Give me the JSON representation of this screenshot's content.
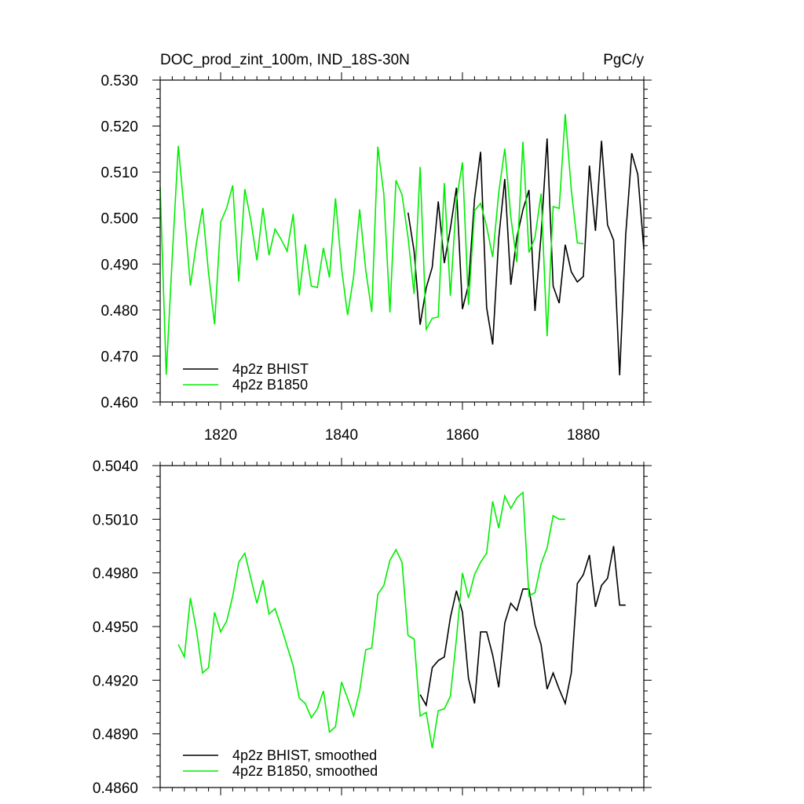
{
  "colors": {
    "black": "#000000",
    "green": "#00ee00"
  },
  "chart_data": [
    {
      "type": "line",
      "title": "DOC_prod_zint_100m, IND_18S-30N",
      "units": "PgC/y",
      "xlim": [
        1810,
        1890
      ],
      "ylim": [
        0.46,
        0.53
      ],
      "xticks": [
        1820,
        1840,
        1860,
        1880
      ],
      "xtick_labels": [
        "1820",
        "1840",
        "1860",
        "1880"
      ],
      "yticks": [
        0.46,
        0.47,
        0.48,
        0.49,
        0.5,
        0.51,
        0.52,
        0.53
      ],
      "ytick_labels": [
        "0.460",
        "0.470",
        "0.480",
        "0.490",
        "0.500",
        "0.510",
        "0.520",
        "0.530"
      ],
      "legend_position": "bottom-left",
      "series": [
        {
          "name": "4p2z BHIST",
          "color": "#000000",
          "x": [
            1851,
            1852,
            1853,
            1854,
            1855,
            1856,
            1857,
            1858,
            1859,
            1860,
            1861,
            1862,
            1863,
            1864,
            1865,
            1866,
            1867,
            1868,
            1869,
            1870,
            1871,
            1872,
            1873,
            1874,
            1875,
            1876,
            1877,
            1878,
            1879,
            1880,
            1881,
            1882,
            1883,
            1884,
            1885,
            1886,
            1887,
            1888,
            1889,
            1890
          ],
          "y": [
            0.5012,
            0.4928,
            0.4768,
            0.4848,
            0.4893,
            0.5036,
            0.4902,
            0.4977,
            0.5066,
            0.4802,
            0.4855,
            0.5042,
            0.5144,
            0.4805,
            0.4725,
            0.4956,
            0.5085,
            0.4855,
            0.4958,
            0.5018,
            0.5061,
            0.4798,
            0.4963,
            0.5173,
            0.4852,
            0.4815,
            0.4942,
            0.4883,
            0.4861,
            0.4873,
            0.5114,
            0.4972,
            0.5168,
            0.4985,
            0.4952,
            0.4658,
            0.4963,
            0.5141,
            0.5095,
            0.4932
          ]
        },
        {
          "name": "4p2z B1850",
          "color": "#00ee00",
          "x": [
            1810,
            1811,
            1812,
            1813,
            1814,
            1815,
            1816,
            1817,
            1818,
            1819,
            1820,
            1821,
            1822,
            1823,
            1824,
            1825,
            1826,
            1827,
            1828,
            1829,
            1830,
            1831,
            1832,
            1833,
            1834,
            1835,
            1836,
            1837,
            1838,
            1839,
            1840,
            1841,
            1842,
            1843,
            1844,
            1845,
            1846,
            1847,
            1848,
            1849,
            1850,
            1851,
            1852,
            1853,
            1854,
            1855,
            1856,
            1857,
            1858,
            1859,
            1860,
            1861,
            1862,
            1863,
            1864,
            1865,
            1866,
            1867,
            1868,
            1869,
            1870,
            1871,
            1872,
            1873,
            1874,
            1875,
            1876,
            1877,
            1878,
            1879,
            1880
          ],
          "y": [
            0.5068,
            0.4659,
            0.4915,
            0.5157,
            0.5012,
            0.4853,
            0.4946,
            0.5021,
            0.4881,
            0.4769,
            0.4991,
            0.5022,
            0.5071,
            0.4862,
            0.5063,
            0.4995,
            0.4908,
            0.5022,
            0.4919,
            0.4976,
            0.4954,
            0.4928,
            0.5009,
            0.4832,
            0.4943,
            0.4852,
            0.4849,
            0.4935,
            0.4871,
            0.5043,
            0.4891,
            0.4789,
            0.4873,
            0.5019,
            0.4887,
            0.4796,
            0.5155,
            0.5051,
            0.4795,
            0.5082,
            0.5051,
            0.4958,
            0.4835,
            0.5111,
            0.4758,
            0.4782,
            0.4785,
            0.5076,
            0.4831,
            0.5039,
            0.5121,
            0.4811,
            0.5016,
            0.5032,
            0.4982,
            0.4915,
            0.5055,
            0.5151,
            0.5002,
            0.4904,
            0.5166,
            0.4925,
            0.4958,
            0.5053,
            0.4743,
            0.5025,
            0.5021,
            0.5226,
            0.5062,
            0.4946,
            0.4944
          ]
        }
      ]
    },
    {
      "type": "line",
      "xlim": [
        1810,
        1890
      ],
      "ylim": [
        0.486,
        0.504
      ],
      "xticks": [
        1820,
        1840,
        1860,
        1880
      ],
      "yticks": [
        0.486,
        0.489,
        0.492,
        0.495,
        0.498,
        0.501,
        0.504
      ],
      "ytick_labels": [
        "0.4860",
        "0.4890",
        "0.4920",
        "0.4950",
        "0.4980",
        "0.5010",
        "0.5040"
      ],
      "legend_position": "bottom-left",
      "series": [
        {
          "name": "4p2z BHIST, smoothed",
          "color": "#000000",
          "x": [
            1853,
            1854,
            1855,
            1856,
            1857,
            1858,
            1859,
            1860,
            1861,
            1862,
            1863,
            1864,
            1865,
            1866,
            1867,
            1868,
            1869,
            1870,
            1871,
            1872,
            1873,
            1874,
            1875,
            1876,
            1877,
            1878,
            1879,
            1880,
            1881,
            1882,
            1883,
            1884,
            1885,
            1886,
            1887
          ],
          "y": [
            0.4912,
            0.4906,
            0.4927,
            0.4931,
            0.4933,
            0.4955,
            0.497,
            0.4958,
            0.4921,
            0.4907,
            0.4947,
            0.4947,
            0.4934,
            0.4916,
            0.4952,
            0.4963,
            0.4959,
            0.4971,
            0.4971,
            0.4951,
            0.494,
            0.4915,
            0.4924,
            0.4915,
            0.4907,
            0.4924,
            0.4974,
            0.4979,
            0.499,
            0.4961,
            0.4973,
            0.4977,
            0.4995,
            0.4962,
            0.4962
          ]
        },
        {
          "name": "4p2z B1850, smoothed",
          "color": "#00ee00",
          "x": [
            1813,
            1814,
            1815,
            1816,
            1817,
            1818,
            1819,
            1820,
            1821,
            1822,
            1823,
            1824,
            1825,
            1826,
            1827,
            1828,
            1829,
            1830,
            1831,
            1832,
            1833,
            1834,
            1835,
            1836,
            1837,
            1838,
            1839,
            1840,
            1841,
            1842,
            1843,
            1844,
            1845,
            1846,
            1847,
            1848,
            1849,
            1850,
            1851,
            1852,
            1853,
            1854,
            1855,
            1856,
            1857,
            1858,
            1859,
            1860,
            1861,
            1862,
            1863,
            1864,
            1865,
            1866,
            1867,
            1868,
            1869,
            1870,
            1871,
            1872,
            1873,
            1874,
            1875,
            1876,
            1877
          ],
          "y": [
            0.494,
            0.4933,
            0.4966,
            0.4948,
            0.4924,
            0.4927,
            0.4958,
            0.4947,
            0.4953,
            0.4967,
            0.4986,
            0.4991,
            0.4977,
            0.4963,
            0.4976,
            0.4957,
            0.496,
            0.495,
            0.4939,
            0.4928,
            0.491,
            0.4907,
            0.4899,
            0.4904,
            0.4914,
            0.4891,
            0.4894,
            0.4919,
            0.491,
            0.49,
            0.4914,
            0.4937,
            0.4938,
            0.4968,
            0.4973,
            0.4987,
            0.4993,
            0.4986,
            0.4945,
            0.4943,
            0.49,
            0.4902,
            0.4882,
            0.4903,
            0.4904,
            0.4911,
            0.4943,
            0.498,
            0.4966,
            0.4979,
            0.4986,
            0.4991,
            0.502,
            0.5005,
            0.5023,
            0.5016,
            0.5022,
            0.5025,
            0.4967,
            0.4969,
            0.4985,
            0.4994,
            0.5012,
            0.501,
            0.501
          ]
        }
      ]
    }
  ]
}
